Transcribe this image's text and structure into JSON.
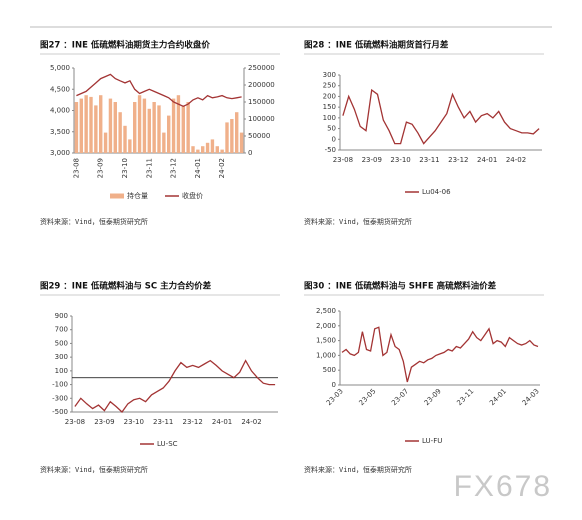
{
  "chart_data": [
    {
      "type": "bar_line",
      "title": "图27 ：INE 低硫燃料油期货主力合约收盘价",
      "categories": [
        "23-08",
        null,
        null,
        null,
        null,
        "23-09",
        null,
        null,
        null,
        null,
        "23-10",
        null,
        null,
        null,
        null,
        "23-11",
        null,
        null,
        null,
        null,
        "23-12",
        null,
        null,
        null,
        null,
        "24-01",
        null,
        null,
        null,
        null,
        "24-02",
        null,
        null,
        null,
        null
      ],
      "series": [
        {
          "name": "持仓量",
          "type": "bar",
          "axis": "y2",
          "color": "#f0b08a",
          "values": [
            150000,
            160000,
            170000,
            165000,
            140000,
            170000,
            60000,
            160000,
            150000,
            120000,
            80000,
            40000,
            150000,
            170000,
            160000,
            130000,
            150000,
            140000,
            60000,
            110000,
            160000,
            170000,
            140000,
            150000,
            20000,
            10000,
            20000,
            30000,
            40000,
            20000,
            10000,
            90000,
            100000,
            120000,
            60000
          ]
        },
        {
          "name": "收盘价",
          "type": "line",
          "axis": "y",
          "color": "#a33434",
          "values": [
            4350,
            4400,
            4450,
            4550,
            4650,
            4750,
            4800,
            4850,
            4750,
            4700,
            4650,
            4700,
            4500,
            4400,
            4450,
            4500,
            4450,
            4400,
            4350,
            4300,
            4200,
            4150,
            4100,
            4150,
            4250,
            4300,
            4250,
            4350,
            4300,
            4320,
            4350,
            4300,
            4280,
            4300,
            4320
          ]
        }
      ],
      "ylim": [
        3000,
        5000
      ],
      "yticks": [
        {
          "value": 3000,
          "label": "3,000"
        },
        {
          "value": 3500,
          "label": "3,500"
        },
        {
          "value": 4000,
          "label": "4,000"
        },
        {
          "value": 4500,
          "label": "4,500"
        },
        {
          "value": 5000,
          "label": "5,000"
        }
      ],
      "y2lim": [
        0,
        250000
      ],
      "y2ticks": [
        0,
        50000,
        100000,
        150000,
        200000,
        250000
      ],
      "source": "资料来源：Vind，恒泰期货研究所"
    },
    {
      "type": "line",
      "title": "图28 ：INE 低硫燃料油期货首行月差",
      "categories": [
        "23-08",
        null,
        null,
        null,
        null,
        "23-09",
        null,
        null,
        null,
        null,
        "23-10",
        null,
        null,
        null,
        null,
        "23-11",
        null,
        null,
        null,
        null,
        "23-12",
        null,
        null,
        null,
        null,
        "24-01",
        null,
        null,
        null,
        null,
        "24-02",
        null,
        null,
        null,
        null
      ],
      "series": [
        {
          "name": "Lu04-06",
          "type": "line",
          "color": "#a33434",
          "values": [
            110,
            200,
            140,
            60,
            40,
            230,
            210,
            90,
            40,
            -20,
            -20,
            80,
            70,
            30,
            -20,
            10,
            40,
            80,
            120,
            210,
            150,
            100,
            130,
            80,
            110,
            120,
            100,
            130,
            80,
            50,
            40,
            30,
            30,
            25,
            50
          ]
        }
      ],
      "ylim": [
        -50,
        300
      ],
      "yticks": [
        -50,
        0,
        50,
        100,
        150,
        200,
        250,
        300
      ],
      "source": "资料来源：Vind，恒泰期货研究所"
    },
    {
      "type": "line",
      "title": "图29 ：INE 低硫燃料油与 SC 主力合约价差",
      "categories": [
        "23-08",
        null,
        null,
        null,
        null,
        "23-09",
        null,
        null,
        null,
        null,
        "23-10",
        null,
        null,
        null,
        null,
        "23-11",
        null,
        null,
        null,
        null,
        "23-12",
        null,
        null,
        null,
        null,
        "24-01",
        null,
        null,
        null,
        null,
        "24-02",
        null,
        null,
        null,
        null
      ],
      "series": [
        {
          "name": "LU-SC",
          "type": "line",
          "color": "#a33434",
          "values": [
            -420,
            -300,
            -380,
            -450,
            -400,
            -480,
            -350,
            -420,
            -500,
            -380,
            -320,
            -300,
            -350,
            -250,
            -200,
            -150,
            -50,
            100,
            220,
            150,
            180,
            150,
            200,
            250,
            180,
            100,
            50,
            0,
            80,
            250,
            100,
            0,
            -80,
            -100,
            -100
          ]
        }
      ],
      "ylim": [
        -500,
        900
      ],
      "yticks": [
        -500,
        -300,
        -100,
        100,
        300,
        500,
        700,
        900
      ],
      "zero_line": true,
      "source": "资料来源：Vind，恒泰期货研究所"
    },
    {
      "type": "line",
      "title": "图30 ：INE 低硫燃料油与 SHFE 高硫燃料油价差",
      "categories": [
        "23-03",
        null,
        null,
        null,
        null,
        null,
        null,
        null,
        "23-05",
        null,
        null,
        null,
        null,
        null,
        null,
        null,
        "23-07",
        null,
        null,
        null,
        null,
        null,
        null,
        null,
        "23-09",
        null,
        null,
        null,
        null,
        null,
        null,
        null,
        "23-11",
        null,
        null,
        null,
        null,
        null,
        null,
        null,
        "24-01",
        null,
        null,
        null,
        null,
        null,
        null,
        null,
        "24-03"
      ],
      "series": [
        {
          "name": "LU-FU",
          "type": "line",
          "color": "#a33434",
          "values": [
            1100,
            1200,
            1050,
            1000,
            1100,
            1800,
            1200,
            1150,
            1900,
            1950,
            1000,
            1100,
            1700,
            1300,
            1200,
            800,
            100,
            600,
            700,
            800,
            750,
            850,
            900,
            1000,
            1050,
            1100,
            1200,
            1150,
            1300,
            1250,
            1400,
            1550,
            1800,
            1600,
            1500,
            1700,
            1900,
            1400,
            1500,
            1450,
            1300,
            1600,
            1500,
            1400,
            1350,
            1400,
            1500,
            1350,
            1300
          ]
        }
      ],
      "ylim": [
        0,
        2500
      ],
      "yticks": [
        0,
        500,
        {
          "value": 1000,
          "label": "1,000"
        },
        {
          "value": 1500,
          "label": "1,500"
        },
        {
          "value": 2000,
          "label": "2,000"
        },
        {
          "value": 2500,
          "label": "2,500"
        }
      ],
      "source": "资料来源：Vind，恒泰期货研究所"
    }
  ],
  "watermark": "FX678"
}
